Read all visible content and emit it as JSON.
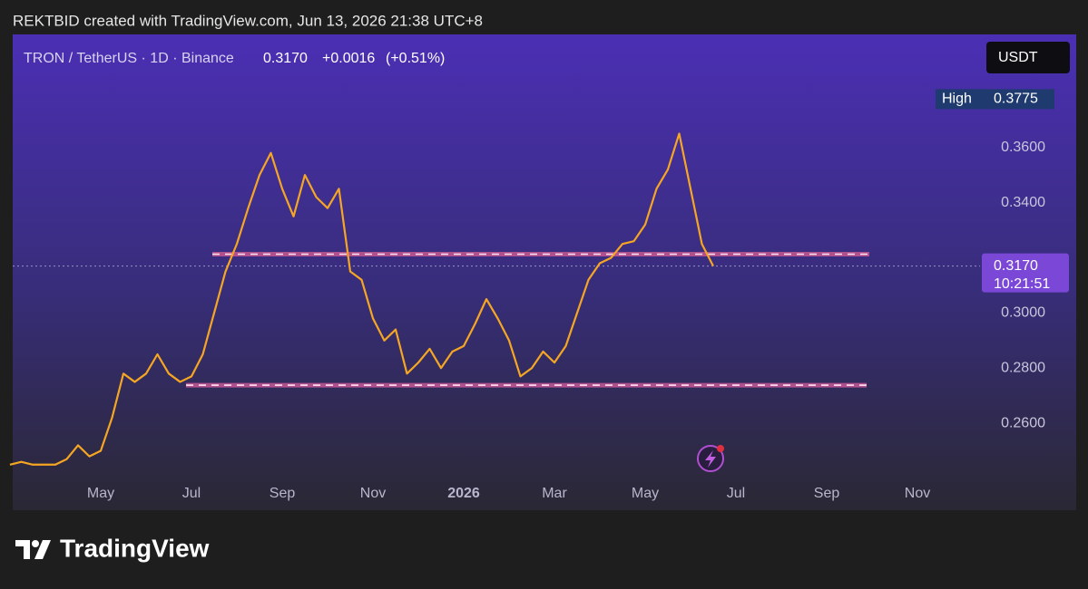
{
  "chart_data": {
    "type": "line",
    "caption": "REKTBID created with TradingView.com, Jun 13, 2026 21:38 UTC+8",
    "title": "TRON / TetherUS · 1D · Binance",
    "last_price": {
      "value": 0.317,
      "label": "0.3170"
    },
    "change": "+0.0016",
    "change_percent": "(+0.51%)",
    "currency": "USDT",
    "high_label": "High",
    "high": 0.3775,
    "countdown": "10:21:51",
    "brand": "TradingView",
    "categories": [
      null,
      null,
      null,
      null,
      null,
      null,
      null,
      null,
      "May",
      null,
      null,
      null,
      null,
      null,
      null,
      null,
      "Jul",
      null,
      null,
      null,
      null,
      null,
      null,
      null,
      "Sep",
      null,
      null,
      null,
      null,
      null,
      null,
      null,
      "Nov",
      null,
      null,
      null,
      null,
      null,
      null,
      null,
      "2026",
      null,
      null,
      null,
      null,
      null,
      null,
      null,
      "Mar",
      null,
      null,
      null,
      null,
      null,
      null,
      null,
      "May",
      null,
      null,
      null,
      null,
      null,
      null,
      null,
      "Jul",
      null,
      null,
      null,
      null,
      null,
      null,
      null,
      "Sep",
      null,
      null,
      null,
      null,
      null,
      null,
      null,
      "Nov",
      null,
      null,
      null,
      null,
      null
    ],
    "series": [
      {
        "color": "#f5a623",
        "values": [
          0.245,
          0.246,
          0.245,
          0.245,
          0.245,
          0.247,
          0.252,
          0.248,
          0.25,
          0.262,
          0.278,
          0.275,
          0.278,
          0.285,
          0.278,
          0.275,
          0.277,
          0.285,
          0.3,
          0.315,
          0.325,
          0.338,
          0.35,
          0.358,
          0.345,
          0.335,
          0.35,
          0.342,
          0.338,
          0.345,
          0.315,
          0.312,
          0.298,
          0.29,
          0.294,
          0.278,
          0.282,
          0.287,
          0.28,
          0.286,
          0.288,
          0.296,
          0.305,
          0.298,
          0.29,
          0.277,
          0.28,
          0.286,
          0.282,
          0.288,
          0.3,
          0.312,
          0.318,
          0.32,
          0.325,
          0.326,
          0.332,
          0.345,
          0.352,
          0.365,
          0.345,
          0.325,
          0.317,
          null,
          null,
          null,
          null,
          null,
          null,
          null,
          null,
          null,
          null,
          null,
          null,
          null,
          null,
          null,
          null,
          null,
          null,
          null,
          null,
          null,
          null,
          null
        ]
      }
    ],
    "levels": [
      0.3213,
      0.2738
    ],
    "ylim": [
      0.2285,
      0.4003
    ],
    "yticks": [
      {
        "value": 0.26,
        "label": "0.2600"
      },
      {
        "value": 0.28,
        "label": "0.2800"
      },
      {
        "value": 0.3,
        "label": "0.3000"
      },
      {
        "value": 0.34,
        "label": "0.3400"
      },
      {
        "value": 0.36,
        "label": "0.3600"
      }
    ],
    "grid": false
  }
}
